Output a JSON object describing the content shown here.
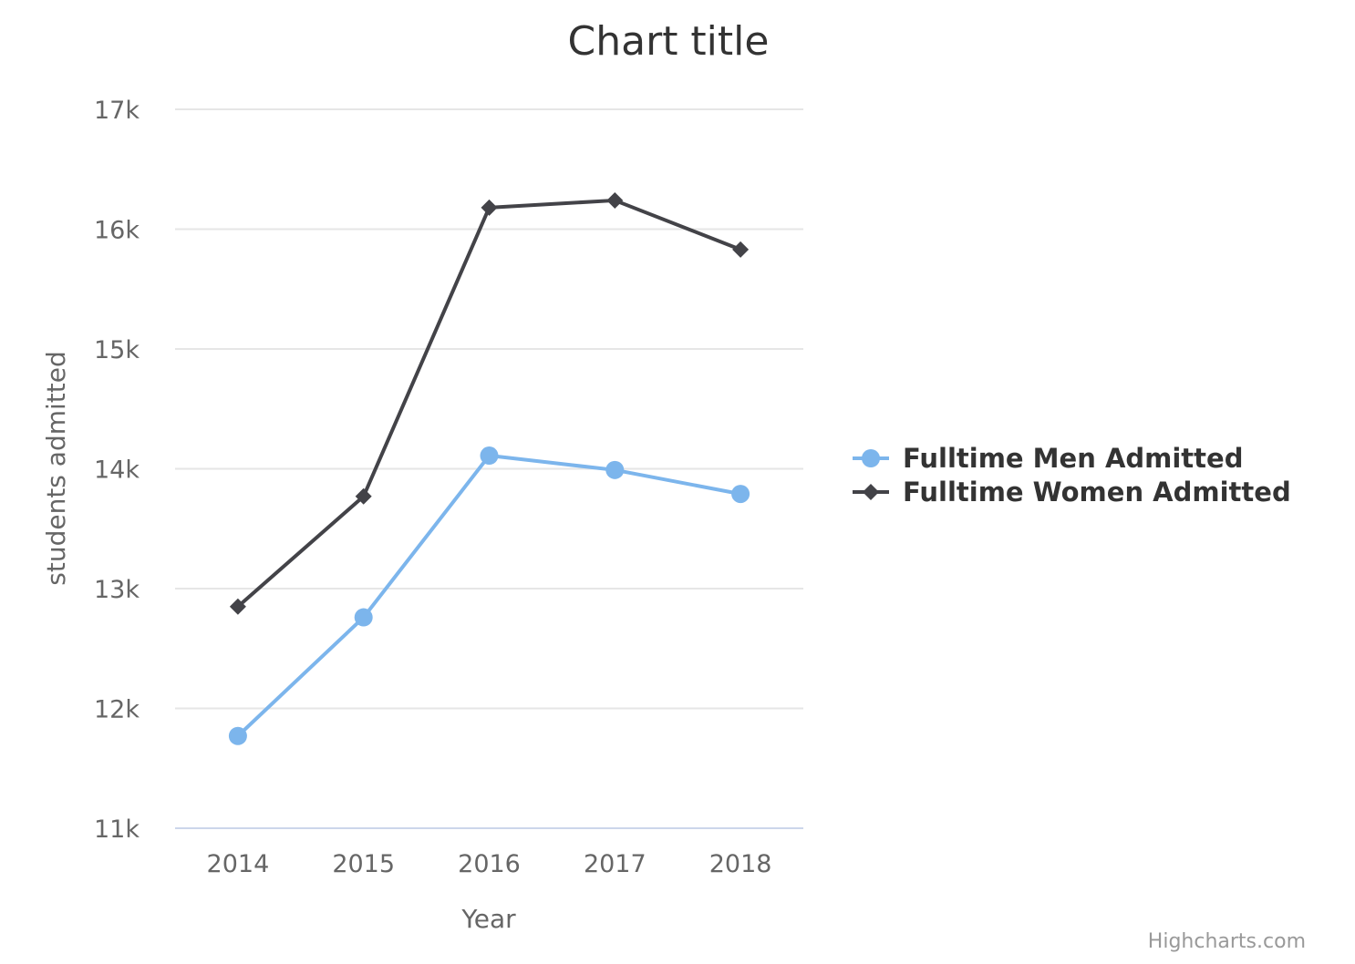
{
  "chart_data": {
    "type": "line",
    "title": "Chart title",
    "xlabel": "Year",
    "ylabel": "students admitted",
    "categories": [
      "2014",
      "2015",
      "2016",
      "2017",
      "2018"
    ],
    "ylim": [
      11000,
      17000
    ],
    "yticks": [
      11000,
      12000,
      13000,
      14000,
      15000,
      16000,
      17000
    ],
    "ytick_labels": [
      "11k",
      "12k",
      "13k",
      "14k",
      "15k",
      "16k",
      "17k"
    ],
    "grid": true,
    "legend_position": "right",
    "series": [
      {
        "name": "Fulltime Men Admitted",
        "color": "#7cb5ec",
        "marker": "circle",
        "values": [
          11770,
          12760,
          14110,
          13990,
          13790
        ]
      },
      {
        "name": "Fulltime Women Admitted",
        "color": "#434348",
        "marker": "diamond",
        "values": [
          12850,
          13770,
          16180,
          16240,
          15830
        ]
      }
    ]
  },
  "credits": "Highcharts.com"
}
